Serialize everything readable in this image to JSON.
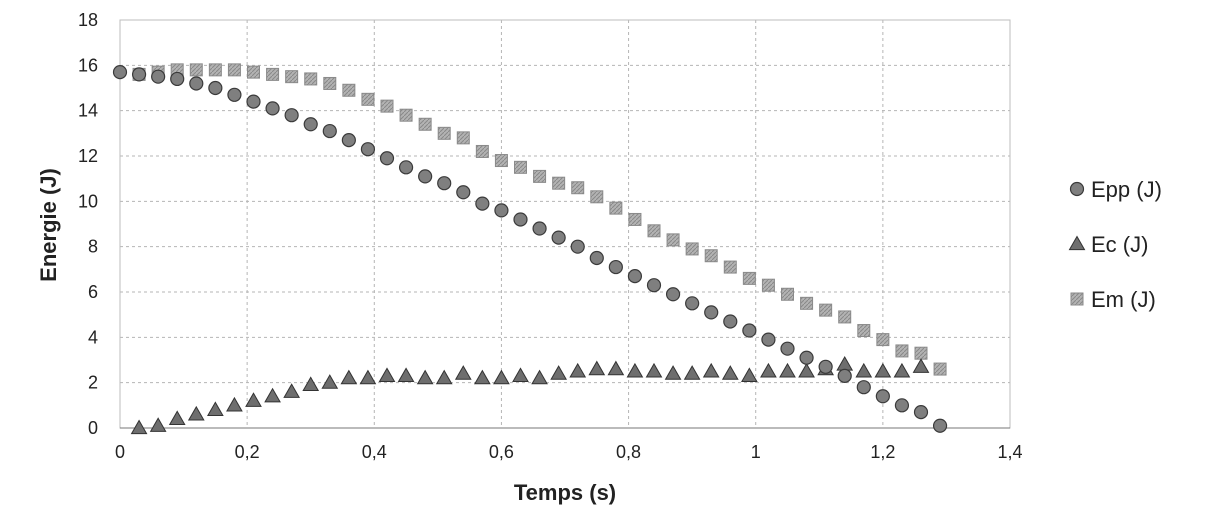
{
  "chart_data": {
    "type": "scatter",
    "title": "",
    "xlabel": "Temps (s)",
    "ylabel": "Energie (J)",
    "xlim": [
      0,
      1.4
    ],
    "ylim": [
      0,
      18
    ],
    "x_ticks": [
      "0",
      "0,2",
      "0,4",
      "0,6",
      "0,8",
      "1",
      "1,2",
      "1,4"
    ],
    "y_ticks": [
      "0",
      "2",
      "4",
      "6",
      "8",
      "10",
      "12",
      "14",
      "16",
      "18"
    ],
    "grid": true,
    "legend_position": "right",
    "series": [
      {
        "name": "Epp (J)",
        "marker": "circle",
        "color": "#808080",
        "x": [
          0.0,
          0.03,
          0.06,
          0.09,
          0.12,
          0.15,
          0.18,
          0.21,
          0.24,
          0.27,
          0.3,
          0.33,
          0.36,
          0.39,
          0.42,
          0.45,
          0.48,
          0.51,
          0.54,
          0.57,
          0.6,
          0.63,
          0.66,
          0.69,
          0.72,
          0.75,
          0.78,
          0.81,
          0.84,
          0.87,
          0.9,
          0.93,
          0.96,
          0.99,
          1.02,
          1.05,
          1.08,
          1.11,
          1.14,
          1.17,
          1.2,
          1.23,
          1.26,
          1.29
        ],
        "y": [
          15.7,
          15.6,
          15.5,
          15.4,
          15.2,
          15.0,
          14.7,
          14.4,
          14.1,
          13.8,
          13.4,
          13.1,
          12.7,
          12.3,
          11.9,
          11.5,
          11.1,
          10.8,
          10.4,
          9.9,
          9.6,
          9.2,
          8.8,
          8.4,
          8.0,
          7.5,
          7.1,
          6.7,
          6.3,
          5.9,
          5.5,
          5.1,
          4.7,
          4.3,
          3.9,
          3.5,
          3.1,
          2.7,
          2.3,
          1.8,
          1.4,
          1.0,
          0.7,
          0.1
        ]
      },
      {
        "name": "Ec (J)",
        "marker": "triangle",
        "color": "#808080",
        "x": [
          0.03,
          0.06,
          0.09,
          0.12,
          0.15,
          0.18,
          0.21,
          0.24,
          0.27,
          0.3,
          0.33,
          0.36,
          0.39,
          0.42,
          0.45,
          0.48,
          0.51,
          0.54,
          0.57,
          0.6,
          0.63,
          0.66,
          0.69,
          0.72,
          0.75,
          0.78,
          0.81,
          0.84,
          0.87,
          0.9,
          0.93,
          0.96,
          0.99,
          1.02,
          1.05,
          1.08,
          1.11,
          1.14,
          1.17,
          1.2,
          1.23,
          1.26
        ],
        "y": [
          0.0,
          0.1,
          0.4,
          0.6,
          0.8,
          1.0,
          1.2,
          1.4,
          1.6,
          1.9,
          2.0,
          2.2,
          2.2,
          2.3,
          2.3,
          2.2,
          2.2,
          2.4,
          2.2,
          2.2,
          2.3,
          2.2,
          2.4,
          2.5,
          2.6,
          2.6,
          2.5,
          2.5,
          2.4,
          2.4,
          2.5,
          2.4,
          2.3,
          2.5,
          2.5,
          2.5,
          2.6,
          2.8,
          2.5,
          2.5,
          2.5,
          2.7
        ]
      },
      {
        "name": "Em (J)",
        "marker": "square",
        "color": "#a6a6a6",
        "x": [
          0.03,
          0.06,
          0.09,
          0.12,
          0.15,
          0.18,
          0.21,
          0.24,
          0.27,
          0.3,
          0.33,
          0.36,
          0.39,
          0.42,
          0.45,
          0.48,
          0.51,
          0.54,
          0.57,
          0.6,
          0.63,
          0.66,
          0.69,
          0.72,
          0.75,
          0.78,
          0.81,
          0.84,
          0.87,
          0.9,
          0.93,
          0.96,
          0.99,
          1.02,
          1.05,
          1.08,
          1.11,
          1.14,
          1.17,
          1.2,
          1.23,
          1.26,
          1.29
        ],
        "y": [
          15.6,
          15.7,
          15.8,
          15.8,
          15.8,
          15.8,
          15.7,
          15.6,
          15.5,
          15.4,
          15.2,
          14.9,
          14.5,
          14.2,
          13.8,
          13.4,
          13.0,
          12.8,
          12.2,
          11.8,
          11.5,
          11.1,
          10.8,
          10.6,
          10.2,
          9.7,
          9.2,
          8.7,
          8.3,
          7.9,
          7.6,
          7.1,
          6.6,
          6.3,
          5.9,
          5.5,
          5.2,
          4.9,
          4.3,
          3.9,
          3.4,
          3.3,
          2.6
        ]
      }
    ]
  }
}
